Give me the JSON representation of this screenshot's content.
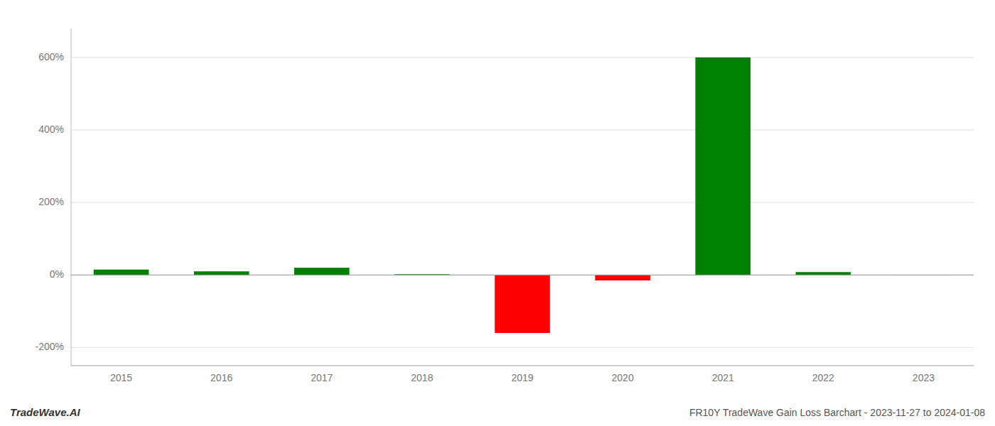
{
  "chart_data": {
    "type": "bar",
    "title": "FR10Y TradeWave Gain Loss Barchart - 2023-11-27 to 2024-01-08",
    "annotations": [
      "TradeWave.AI"
    ],
    "categories": [
      "2015",
      "2016",
      "2017",
      "2018",
      "2019",
      "2020",
      "2021",
      "2022",
      "2023"
    ],
    "values": [
      15,
      10,
      20,
      2,
      -160,
      -15,
      600,
      8,
      0.5
    ],
    "colors": [
      "#008000",
      "#008000",
      "#008000",
      "#008000",
      "#ff0000",
      "#ff0000",
      "#008000",
      "#008000",
      "#008000"
    ],
    "ylim": [
      -250,
      680
    ],
    "yticks": [
      {
        "value": -200,
        "label": "-200%"
      },
      {
        "value": 0,
        "label": "0%"
      },
      {
        "value": 200,
        "label": "200%"
      },
      {
        "value": 400,
        "label": "400%"
      },
      {
        "value": 600,
        "label": "600%"
      }
    ],
    "grid": true
  }
}
